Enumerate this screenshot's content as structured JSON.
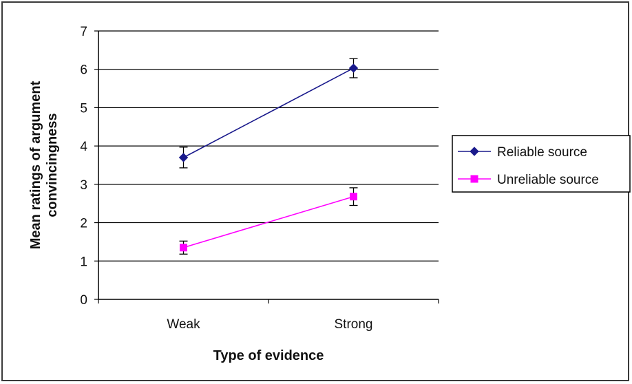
{
  "chart_data": {
    "type": "line",
    "title": "",
    "xlabel": "Type of evidence",
    "ylabel": "Mean ratings of argument convincingness",
    "ylabel_lines": [
      "Mean ratings of argument",
      "convincingness"
    ],
    "categories": [
      "Weak",
      "Strong"
    ],
    "ylim": [
      0,
      7
    ],
    "yticks": [
      "0",
      "1",
      "2",
      "3",
      "4",
      "5",
      "6",
      "7"
    ],
    "grid": "horizontal",
    "legend_position": "right",
    "series": [
      {
        "name": "Reliable source",
        "values": [
          3.7,
          6.03
        ],
        "errors": [
          0.27,
          0.25
        ],
        "color": "#1a1a8c",
        "marker": "diamond"
      },
      {
        "name": "Unreliable source",
        "values": [
          1.35,
          2.68
        ],
        "errors": [
          0.17,
          0.23
        ],
        "color": "#ff00ff",
        "marker": "square"
      }
    ]
  }
}
